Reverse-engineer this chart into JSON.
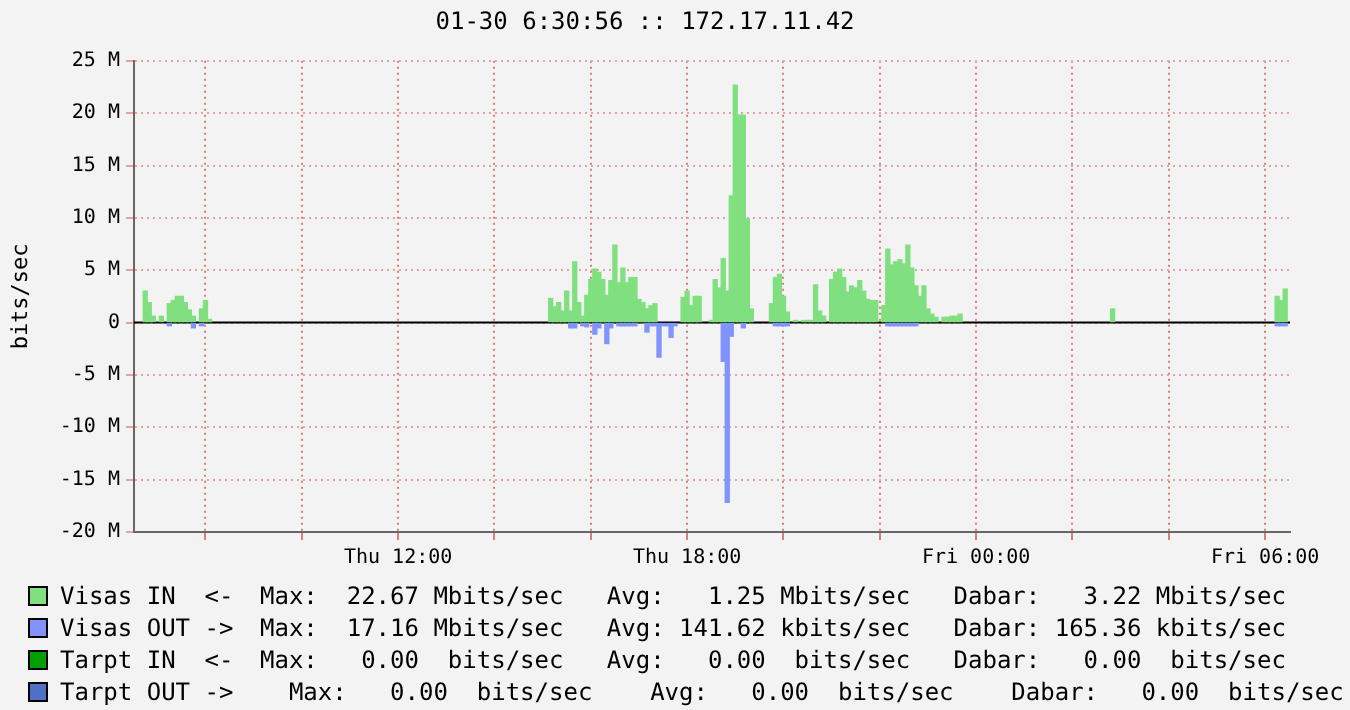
{
  "chart_data": {
    "type": "bar",
    "title": "01-30 6:30:56 :: 172.17.11.42",
    "ylabel": "bits/sec",
    "xlim": [
      "--01-30T06:31",
      "--01-31T06:31"
    ],
    "xticks": [
      {
        "value": "--01-30T08:00",
        "label": null
      },
      {
        "value": "--01-30T10:00",
        "label": null
      },
      {
        "value": "--01-30T12:00",
        "label": "Thu 12:00"
      },
      {
        "value": "--01-30T14:00",
        "label": null
      },
      {
        "value": "--01-30T16:00",
        "label": null
      },
      {
        "value": "--01-30T18:00",
        "label": "Thu 18:00"
      },
      {
        "value": "--01-30T20:00",
        "label": null
      },
      {
        "value": "--01-30T22:00",
        "label": null
      },
      {
        "value": "--01-31T00:00",
        "label": "Fri 00:00"
      },
      {
        "value": "--01-31T02:00",
        "label": null
      },
      {
        "value": "--01-31T04:00",
        "label": null
      },
      {
        "value": "--01-31T06:00",
        "label": "Fri 06:00"
      }
    ],
    "ylim": [
      -20,
      25
    ],
    "yticks": [
      {
        "value": -20,
        "label": "-20 M"
      },
      {
        "value": -15,
        "label": "-15 M"
      },
      {
        "value": -10,
        "label": "-10 M"
      },
      {
        "value": -5,
        "label": "-5 M"
      },
      0,
      {
        "value": 5,
        "label": "5 M"
      },
      {
        "value": 10,
        "label": "10 M"
      },
      {
        "value": 15,
        "label": "15 M"
      },
      {
        "value": 20,
        "label": "20 M"
      },
      {
        "value": 25,
        "label": "25 M"
      }
    ],
    "grid": true,
    "legend": "bottom",
    "ref_lines": [
      {
        "axis": "y",
        "value": 0,
        "color": "#000000"
      }
    ],
    "series": [
      {
        "name": "Visas IN  <-",
        "color": "#80e080",
        "x": [
          "--01-30T06:45",
          "--01-30T06:50",
          "--01-30T06:55",
          "--01-30T07:05",
          "--01-30T07:15",
          "--01-30T07:20",
          "--01-30T07:25",
          "--01-30T07:30",
          "--01-30T07:35",
          "--01-30T07:40",
          "--01-30T07:45",
          "--01-30T07:55",
          "--01-30T08:00",
          "--01-30T08:05",
          "--01-30T15:10",
          "--01-30T15:15",
          "--01-30T15:20",
          "--01-30T15:25",
          "--01-30T15:30",
          "--01-30T15:35",
          "--01-30T15:40",
          "--01-30T15:45",
          "--01-30T15:50",
          "--01-30T15:55",
          "--01-30T16:00",
          "--01-30T16:05",
          "--01-30T16:10",
          "--01-30T16:15",
          "--01-30T16:20",
          "--01-30T16:25",
          "--01-30T16:30",
          "--01-30T16:35",
          "--01-30T16:40",
          "--01-30T16:45",
          "--01-30T16:50",
          "--01-30T16:55",
          "--01-30T17:00",
          "--01-30T17:05",
          "--01-30T17:10",
          "--01-30T17:15",
          "--01-30T17:20",
          "--01-30T17:55",
          "--01-30T18:00",
          "--01-30T18:05",
          "--01-30T18:10",
          "--01-30T18:15",
          "--01-30T18:30",
          "--01-30T18:35",
          "--01-30T18:40",
          "--01-30T18:45",
          "--01-30T18:50",
          "--01-30T18:55",
          "--01-30T19:00",
          "--01-30T19:05",
          "--01-30T19:10",
          "--01-30T19:15",
          "--01-30T19:20",
          "--01-30T19:45",
          "--01-30T19:50",
          "--01-30T19:55",
          "--01-30T20:00",
          "--01-30T20:05",
          "--01-30T20:15",
          "--01-30T20:25",
          "--01-30T20:30",
          "--01-30T20:35",
          "--01-30T20:40",
          "--01-30T20:45",
          "--01-30T20:50",
          "--01-30T21:00",
          "--01-30T21:05",
          "--01-30T21:10",
          "--01-30T21:15",
          "--01-30T21:20",
          "--01-30T21:25",
          "--01-30T21:30",
          "--01-30T21:35",
          "--01-30T21:40",
          "--01-30T21:45",
          "--01-30T21:50",
          "--01-30T21:55",
          "--01-30T22:05",
          "--01-30T22:10",
          "--01-30T22:15",
          "--01-30T22:20",
          "--01-30T22:25",
          "--01-30T22:30",
          "--01-30T22:35",
          "--01-30T22:40",
          "--01-30T22:45",
          "--01-30T22:50",
          "--01-30T22:55",
          "--01-30T23:00",
          "--01-30T23:05",
          "--01-30T23:10",
          "--01-30T23:20",
          "--01-30T23:25",
          "--01-30T23:30",
          "--01-30T23:35",
          "--01-30T23:40",
          "--01-31T02:50",
          "--01-31T06:15",
          "--01-31T06:20",
          "--01-31T06:25"
        ],
        "values": [
          3.0,
          1.9,
          0.6,
          0.6,
          1.8,
          2.1,
          2.5,
          2.5,
          1.9,
          1.2,
          0.6,
          1.3,
          2.1,
          0.3,
          2.3,
          1.5,
          1.9,
          1.1,
          3.0,
          1.1,
          5.8,
          1.9,
          0.6,
          2.6,
          4.1,
          5.1,
          4.8,
          4.1,
          2.6,
          4.0,
          7.4,
          3.8,
          5.2,
          3.8,
          4.3,
          4.3,
          2.2,
          1.9,
          1.3,
          1.6,
          1.8,
          2.4,
          3.0,
          1.6,
          2.5,
          2.5,
          0.2,
          4.1,
          3.3,
          6.1,
          3.0,
          12.1,
          22.67,
          19.8,
          19.8,
          9.9,
          1.3,
          1.8,
          4.3,
          4.6,
          2.5,
          1.0,
          0.2,
          0.2,
          0.2,
          0.2,
          3.6,
          1.1,
          0.6,
          4.1,
          4.8,
          5.1,
          4.3,
          2.9,
          3.5,
          3.3,
          4.0,
          3.0,
          2.2,
          2.1,
          2.1,
          1.6,
          7.0,
          5.5,
          5.8,
          6.0,
          5.6,
          7.4,
          5.2,
          3.5,
          2.5,
          3.5,
          1.3,
          0.8,
          0.5,
          0.5,
          0.5,
          0.6,
          0.6,
          0.8,
          1.3,
          2.5,
          2.1,
          3.2
        ]
      },
      {
        "name": "Visas OUT ->",
        "color": "#8093ff",
        "x": [
          "--01-30T07:15",
          "--01-30T07:45",
          "--01-30T07:55",
          "--01-30T15:35",
          "--01-30T15:40",
          "--01-30T15:50",
          "--01-30T15:55",
          "--01-30T16:05",
          "--01-30T16:10",
          "--01-30T16:20",
          "--01-30T16:25",
          "--01-30T16:35",
          "--01-30T16:40",
          "--01-30T16:45",
          "--01-30T16:50",
          "--01-30T16:55",
          "--01-30T17:10",
          "--01-30T17:15",
          "--01-30T17:20",
          "--01-30T17:25",
          "--01-30T17:30",
          "--01-30T17:35",
          "--01-30T17:40",
          "--01-30T17:45",
          "--01-30T18:45",
          "--01-30T18:50",
          "--01-30T18:55",
          "--01-30T19:10",
          "--01-30T19:50",
          "--01-30T19:55",
          "--01-30T20:00",
          "--01-30T20:05",
          "--01-30T22:10",
          "--01-30T22:15",
          "--01-30T22:20",
          "--01-30T22:25",
          "--01-30T22:30",
          "--01-30T22:35",
          "--01-30T22:40",
          "--01-30T22:45",
          "--01-31T06:15",
          "--01-31T06:20",
          "--01-31T06:25"
        ],
        "values": [
          -0.3,
          -0.5,
          -0.3,
          -0.5,
          -0.5,
          -0.3,
          -0.4,
          -1.1,
          -0.5,
          -2.0,
          -0.5,
          -0.3,
          -0.3,
          -0.3,
          -0.3,
          -0.3,
          -0.9,
          -0.3,
          -0.3,
          -3.3,
          -0.3,
          -0.3,
          -1.4,
          -0.3,
          -3.7,
          -17.16,
          -1.3,
          -0.5,
          -0.3,
          -0.3,
          -0.3,
          -0.3,
          -0.3,
          -0.3,
          -0.3,
          -0.3,
          -0.3,
          -0.3,
          -0.3,
          -0.3,
          -0.3,
          -0.3,
          -0.3
        ]
      },
      {
        "name": "Tarpt IN  <-",
        "color": "#00a000"
      },
      {
        "name": "Tarpt OUT ->",
        "color": "#5070c8"
      }
    ],
    "annotations": [
      "Max:  22.67 Mbits/sec   Avg:   1.25 Mbits/sec   Dabar:   3.22 Mbits/sec",
      "Max:  17.16 Mbits/sec   Avg: 141.62 kbits/sec   Dabar: 165.36 kbits/sec",
      "Max:   0.00  bits/sec   Avg:   0.00  bits/sec   Dabar:   0.00  bits/sec",
      "  Max:   0.00  bits/sec    Avg:   0.00  bits/sec    Dabar:   0.00  bits/sec"
    ]
  }
}
